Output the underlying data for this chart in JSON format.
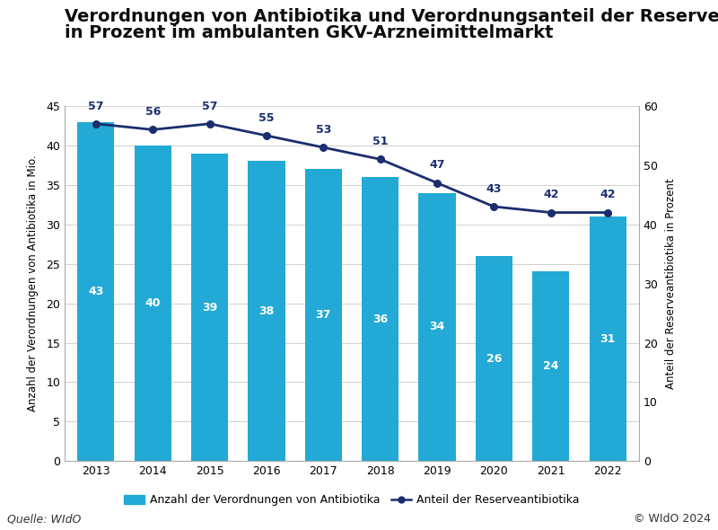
{
  "title_line1": "Verordnungen von Antibiotika und Verordnungsanteil der Reserveantibiotika",
  "title_line2": "in Prozent im ambulanten GKV-Arzneimittelmarkt",
  "years": [
    2013,
    2014,
    2015,
    2016,
    2017,
    2018,
    2019,
    2020,
    2021,
    2022
  ],
  "bar_values": [
    43,
    40,
    39,
    38,
    37,
    36,
    34,
    26,
    24,
    31
  ],
  "line_values": [
    57,
    56,
    57,
    55,
    53,
    51,
    47,
    43,
    42,
    42
  ],
  "bar_color": "#23a9d5",
  "line_color": "#1a2e6e",
  "bar_label": "Anzahl der Verordnungen von Antibiotika",
  "line_label": "Anteil der Reserveantibiotika",
  "ylabel_left": "Anzahl der Verordnungen von Antibiotika in Mio.",
  "ylabel_right": "Anteil der Reserveantibiotika in Prozent",
  "ylim_left": [
    0,
    45
  ],
  "ylim_right": [
    0,
    60
  ],
  "yticks_left": [
    0,
    5,
    10,
    15,
    20,
    25,
    30,
    35,
    40,
    45
  ],
  "yticks_right": [
    0,
    10,
    20,
    30,
    40,
    50,
    60
  ],
  "background_color": "#ffffff",
  "source_text": "Quelle: WIdO",
  "copyright_text": "© WIdO 2024",
  "title_fontsize": 14,
  "axis_label_fontsize": 8.5,
  "tick_fontsize": 9,
  "annotation_fontsize": 9,
  "legend_fontsize": 9,
  "source_fontsize": 9
}
